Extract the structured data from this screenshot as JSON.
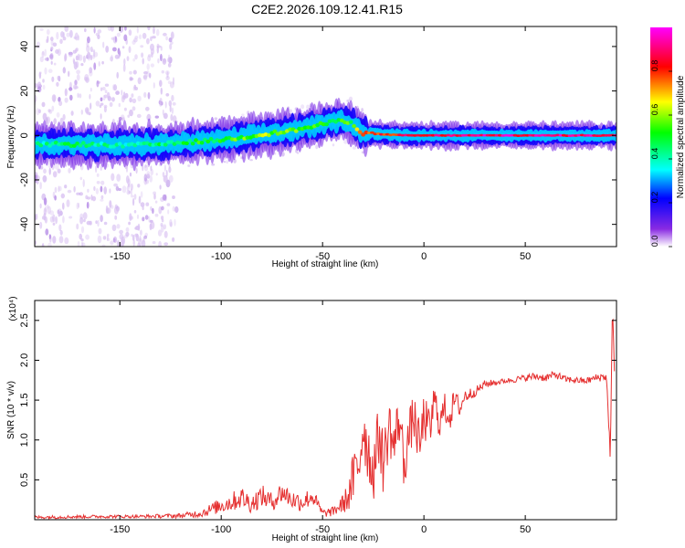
{
  "figure": {
    "title": "C2E2.2026.109.12.41.R15"
  },
  "chart_data": [
    {
      "type": "heatmap",
      "name": "spectrogram",
      "xlabel": "Height of straight line (km)",
      "ylabel": "Frequency (Hz)",
      "xlim": [
        -192,
        95
      ],
      "ylim": [
        -50,
        49
      ],
      "xticks": [
        -150,
        -100,
        -50,
        0,
        50
      ],
      "yticks": [
        -40,
        -20,
        0,
        20,
        40
      ],
      "colorbar": {
        "label": "Normalized spectral amplitude",
        "range": [
          0,
          1
        ],
        "ticks": [
          0.0,
          0.2,
          0.4,
          0.6,
          0.8
        ],
        "tick_labels": [
          "0.0",
          "0.2",
          "0.4",
          "0.6",
          "0.8"
        ],
        "colors": [
          "#ffffff",
          "#8a2be2",
          "#0000ff",
          "#00ffff",
          "#00ff00",
          "#ffff00",
          "#ff0000",
          "#ff00ff"
        ]
      },
      "signal_trace": {
        "x": [
          -192,
          -170,
          -150,
          -130,
          -115,
          -100,
          -90,
          -80,
          -70,
          -60,
          -50,
          -40,
          -35,
          -30,
          -20,
          -10,
          0,
          20,
          50,
          94
        ],
        "frequency": [
          -4,
          -4,
          -4.5,
          -4,
          -3,
          -2,
          -1,
          0.5,
          1.5,
          3,
          5,
          7,
          5,
          1,
          0.5,
          0,
          0,
          0,
          0,
          0
        ],
        "amplitude": [
          0.4,
          0.45,
          0.4,
          0.45,
          0.5,
          0.5,
          0.55,
          0.6,
          0.6,
          0.55,
          0.5,
          0.5,
          0.55,
          0.75,
          0.8,
          0.85,
          0.85,
          0.9,
          0.9,
          0.9
        ]
      }
    },
    {
      "type": "line",
      "name": "snr",
      "xlabel": "Height of straight line (km)",
      "ylabel": "SNR (10 * v/v)",
      "y_multiplier": "(x10⁴)",
      "xlim": [
        -192,
        95
      ],
      "ylim": [
        0,
        2.75
      ],
      "xticks": [
        -150,
        -100,
        -50,
        0,
        50
      ],
      "yticks": [
        0.5,
        1.0,
        1.5,
        2.0,
        2.5
      ],
      "ytick_labels": [
        "0.5",
        "1.0",
        "1.5",
        "2.0",
        "2.5"
      ],
      "color": "#e53030",
      "x": [
        -192,
        -160,
        -140,
        -120,
        -110,
        -100,
        -95,
        -90,
        -85,
        -80,
        -75,
        -70,
        -65,
        -60,
        -55,
        -50,
        -45,
        -40,
        -37,
        -35,
        -32,
        -30,
        -27,
        -25,
        -22,
        -20,
        -17,
        -15,
        -12,
        -10,
        -7,
        -5,
        -2,
        0,
        3,
        5,
        8,
        10,
        13,
        15,
        18,
        20,
        25,
        30,
        35,
        40,
        45,
        50,
        55,
        60,
        65,
        70,
        75,
        80,
        85,
        90,
        92,
        93,
        94
      ],
      "values": [
        0.03,
        0.04,
        0.04,
        0.05,
        0.08,
        0.18,
        0.22,
        0.28,
        0.2,
        0.3,
        0.22,
        0.35,
        0.25,
        0.22,
        0.3,
        0.08,
        0.1,
        0.2,
        0.3,
        0.5,
        0.7,
        1.2,
        0.8,
        0.6,
        1.1,
        0.7,
        1.2,
        0.9,
        1.3,
        0.7,
        1.1,
        1.3,
        0.9,
        1.3,
        1.1,
        1.5,
        1.2,
        1.4,
        1.3,
        1.5,
        1.4,
        1.55,
        1.6,
        1.7,
        1.72,
        1.74,
        1.76,
        1.78,
        1.8,
        1.78,
        1.82,
        1.76,
        1.75,
        1.74,
        1.78,
        1.8,
        0.8,
        2.7,
        1.75
      ],
      "noise_amplitude": [
        0.02,
        0.02,
        0.02,
        0.03,
        0.05,
        0.1,
        0.12,
        0.14,
        0.12,
        0.14,
        0.12,
        0.14,
        0.12,
        0.12,
        0.12,
        0.05,
        0.06,
        0.12,
        0.2,
        0.35,
        0.4,
        0.45,
        0.4,
        0.4,
        0.4,
        0.4,
        0.35,
        0.35,
        0.35,
        0.35,
        0.3,
        0.3,
        0.3,
        0.3,
        0.25,
        0.25,
        0.2,
        0.2,
        0.18,
        0.15,
        0.12,
        0.1,
        0.06,
        0.05,
        0.04,
        0.03,
        0.04,
        0.04,
        0.05,
        0.05,
        0.05,
        0.04,
        0.04,
        0.04,
        0.05,
        0.06,
        0.1,
        0.1,
        0.1
      ]
    }
  ]
}
